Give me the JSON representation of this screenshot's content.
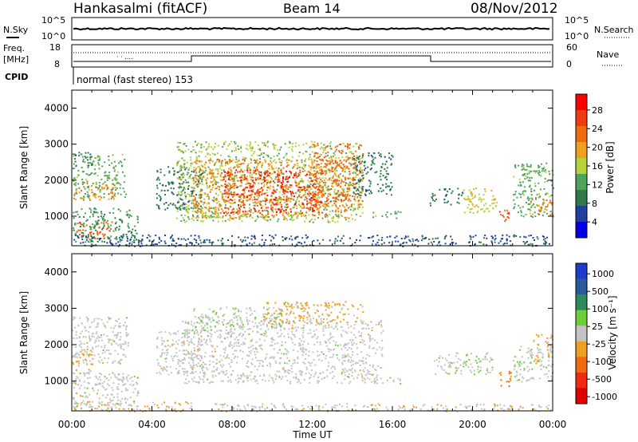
{
  "header": {
    "station": "Hankasalmi (fitACF)",
    "beam": "Beam 14",
    "date": "08/Nov/2012"
  },
  "noise_panel": {
    "left_label": "N.Sky",
    "right_label": "N.Search",
    "left_ticks": [
      "10^5",
      "10^0"
    ],
    "right_ticks": [
      "10^5",
      "10^0"
    ]
  },
  "freq_panel": {
    "label_line1": "Freq.",
    "label_line2": "[MHz]",
    "cpid_label": "CPID",
    "left_ticks": [
      "18",
      "8"
    ],
    "right_label": "Nave",
    "right_ticks": [
      "60",
      "0"
    ],
    "program_text": "normal (fast stereo) 153"
  },
  "colors": {
    "power_scale": [
      "#0000e0",
      "#2040a0",
      "#2f7a4a",
      "#4ea55a",
      "#b8d23c",
      "#f0a020",
      "#f06a10",
      "#f03a10",
      "#ff0000"
    ],
    "velocity_scale": [
      "#1e3cc8",
      "#2a5a9a",
      "#2f8a5a",
      "#6ccf3a",
      "#c4c4c4",
      "#f0a020",
      "#f06a10",
      "#f02a10",
      "#e00000"
    ]
  },
  "chart_data": [
    {
      "type": "heatmap",
      "name": "power",
      "ylabel": "Slant Range [km]",
      "ylim": [
        180,
        4500
      ],
      "xlim": [
        0,
        24
      ],
      "yticks": [
        "1000",
        "2000",
        "3000",
        "4000"
      ],
      "colorbar_label": "Power [dB]",
      "colorbar_ticks": [
        "28",
        "24",
        "20",
        "16",
        "12",
        "8",
        "4"
      ],
      "colorbar_range": [
        0,
        30
      ],
      "regions": [
        {
          "t0": 0.0,
          "t1": 2.7,
          "r0": 1500,
          "r1": 2750,
          "level": 12
        },
        {
          "t0": 0.0,
          "t1": 2.2,
          "r0": 1450,
          "r1": 1950,
          "level": 20
        },
        {
          "t0": 0.0,
          "t1": 3.3,
          "r0": 300,
          "r1": 1250,
          "level": 10
        },
        {
          "t0": 0.2,
          "t1": 2.0,
          "r0": 400,
          "r1": 900,
          "level": 22
        },
        {
          "t0": 0.0,
          "t1": 1.0,
          "r0": 2400,
          "r1": 2800,
          "level": 8
        },
        {
          "t0": 4.2,
          "t1": 6.5,
          "r0": 1200,
          "r1": 2400,
          "level": 8
        },
        {
          "t0": 5.2,
          "t1": 14.5,
          "r0": 850,
          "r1": 3100,
          "level": 14
        },
        {
          "t0": 6.0,
          "t1": 13.8,
          "r0": 950,
          "r1": 2600,
          "level": 20
        },
        {
          "t0": 7.5,
          "t1": 12.5,
          "r0": 1100,
          "r1": 2300,
          "level": 26
        },
        {
          "t0": 12.0,
          "t1": 14.5,
          "r0": 1300,
          "r1": 3050,
          "level": 22
        },
        {
          "t0": 14.0,
          "t1": 16.0,
          "r0": 1600,
          "r1": 2800,
          "level": 8
        },
        {
          "t0": 15.0,
          "t1": 16.4,
          "r0": 950,
          "r1": 1150,
          "level": 12
        },
        {
          "t0": 17.8,
          "t1": 19.5,
          "r0": 1300,
          "r1": 1800,
          "level": 8
        },
        {
          "t0": 19.5,
          "t1": 21.2,
          "r0": 1100,
          "r1": 1800,
          "level": 16
        },
        {
          "t0": 21.3,
          "t1": 21.9,
          "r0": 850,
          "r1": 1300,
          "level": 24
        },
        {
          "t0": 22.0,
          "t1": 24.0,
          "r0": 1000,
          "r1": 2500,
          "level": 12
        },
        {
          "t0": 22.8,
          "t1": 24.0,
          "r0": 1050,
          "r1": 1550,
          "level": 20
        },
        {
          "t0": 0.0,
          "t1": 24.0,
          "r0": 180,
          "r1": 500,
          "level": 6
        }
      ]
    },
    {
      "type": "heatmap",
      "name": "velocity",
      "ylabel": "Slant Range [km]",
      "ylim": [
        180,
        4500
      ],
      "xlim": [
        0,
        24
      ],
      "yticks": [
        "1000",
        "2000",
        "3000",
        "4000"
      ],
      "xticks": [
        "00:00",
        "04:00",
        "08:00",
        "12:00",
        "16:00",
        "20:00",
        "00:00"
      ],
      "xlabel": "Time UT",
      "colorbar_label": "Velocity [m s⁻¹]",
      "colorbar_ticks": [
        "1000",
        "500",
        "100",
        "25",
        "-25",
        "-100",
        "-500",
        "-1000"
      ],
      "colorbar_range": [
        -1200,
        1200
      ],
      "regions": [
        {
          "t0": 0.0,
          "t1": 2.8,
          "r0": 1500,
          "r1": 2800,
          "level": 0
        },
        {
          "t0": 0.0,
          "t1": 1.0,
          "r0": 1200,
          "r1": 1900,
          "level": -150
        },
        {
          "t0": 0.0,
          "t1": 3.3,
          "r0": 300,
          "r1": 1250,
          "level": 0
        },
        {
          "t0": 0.0,
          "t1": 6.0,
          "r0": 180,
          "r1": 450,
          "level": -120
        },
        {
          "t0": 4.2,
          "t1": 6.5,
          "r0": 1200,
          "r1": 2400,
          "level": 0
        },
        {
          "t0": 5.5,
          "t1": 15.5,
          "r0": 950,
          "r1": 2700,
          "level": 0
        },
        {
          "t0": 6.0,
          "t1": 10.5,
          "r0": 2400,
          "r1": 3050,
          "level": 80
        },
        {
          "t0": 9.5,
          "t1": 14.5,
          "r0": 2600,
          "r1": 3200,
          "level": -200
        },
        {
          "t0": 15.0,
          "t1": 16.4,
          "r0": 950,
          "r1": 1150,
          "level": 0
        },
        {
          "t0": 18.0,
          "t1": 21.0,
          "r0": 1200,
          "r1": 1800,
          "level": 80
        },
        {
          "t0": 21.3,
          "t1": 21.9,
          "r0": 850,
          "r1": 1300,
          "level": -400
        },
        {
          "t0": 22.0,
          "t1": 24.0,
          "r0": 1000,
          "r1": 2000,
          "level": 60
        },
        {
          "t0": 23.0,
          "t1": 24.0,
          "r0": 1500,
          "r1": 2300,
          "level": -150
        },
        {
          "t0": 7.0,
          "t1": 24.0,
          "r0": 180,
          "r1": 400,
          "level": -60
        }
      ]
    }
  ]
}
